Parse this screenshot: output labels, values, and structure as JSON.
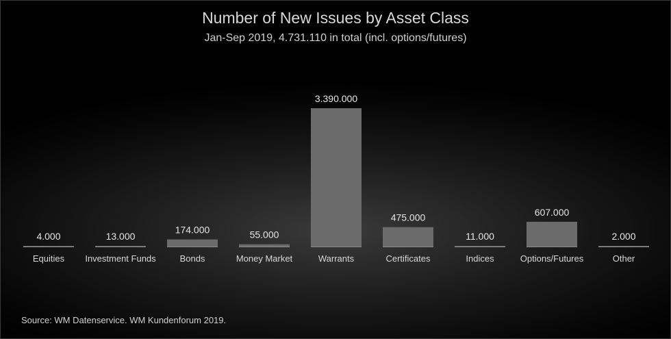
{
  "chart_data": {
    "type": "bar",
    "title": "Number of New Issues by Asset Class",
    "subtitle": "Jan-Sep 2019, 4.731.110 in total (incl. options/futures)",
    "categories": [
      "Equities",
      "Investment Funds",
      "Bonds",
      "Money Market",
      "Warrants",
      "Certificates",
      "Indices",
      "Options/Futures",
      "Other"
    ],
    "values": [
      4000,
      13000,
      174000,
      55000,
      3390000,
      475000,
      11000,
      607000,
      2000
    ],
    "value_labels": [
      "4.000",
      "13.000",
      "174.000",
      "55.000",
      "3.390.000",
      "475.000",
      "11.000",
      "607.000",
      "2.000"
    ],
    "xlabel": "",
    "ylabel": "",
    "ylim": [
      0,
      3390000
    ],
    "grid": false,
    "colors": {
      "bar": "#6b6b6b",
      "baseline": "#8a8a8a",
      "background": "#000000"
    }
  },
  "source": "Source: WM Datenservice. WM Kundenforum 2019."
}
